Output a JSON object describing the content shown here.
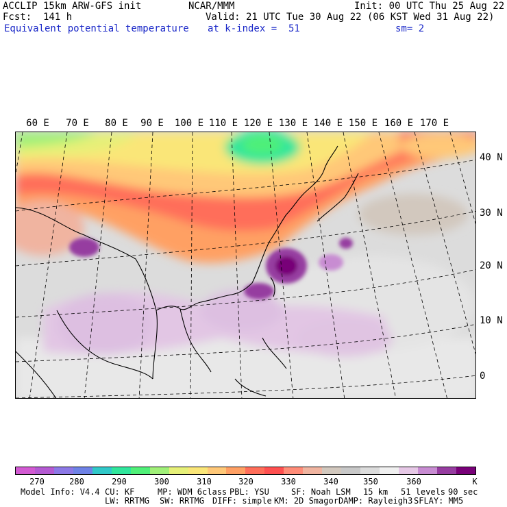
{
  "header": {
    "line1_left": "ACCLIP 15km ARW-GFS init",
    "line1_mid": "NCAR/MMM",
    "line1_right": "Init: 00 UTC Thu 25 Aug 22",
    "line2_left": "Fcst:  141 h",
    "line2_right": "Valid: 21 UTC Tue 30 Aug 22 (06 KST Wed 31 Aug 22)",
    "line3_left": "Equivalent potential temperature",
    "line3_mid": "at k-index =  51",
    "line3_right": "sm= 2"
  },
  "map": {
    "lon_labels": [
      "60 E",
      "70 E",
      "80 E",
      "90 E",
      "100 E",
      "110 E",
      "120 E",
      "130 E",
      "140 E",
      "150 E",
      "160 E",
      "170 E"
    ],
    "lat_labels": [
      "40 N",
      "30 N",
      "20 N",
      "10 N",
      "0"
    ]
  },
  "colorbar": {
    "colors": [
      "#d25ad2",
      "#b45ad2",
      "#8c78e6",
      "#6e82e6",
      "#30c8c8",
      "#30e69c",
      "#50f078",
      "#a0f078",
      "#e6f078",
      "#fae678",
      "#ffc878",
      "#ffa064",
      "#ff6e5a",
      "#ff5050",
      "#ff8c78",
      "#f0b4a0",
      "#d2c8be",
      "#c8c8c8",
      "#dcdcdc",
      "#f0f0f0",
      "#e6c8e6",
      "#c88cd2",
      "#963ca0",
      "#780078"
    ],
    "labels": [
      "270",
      "280",
      "290",
      "300",
      "310",
      "320",
      "330",
      "340",
      "350",
      "360"
    ],
    "unit": "K"
  },
  "footer": {
    "line1": [
      "Model Info: V4.4",
      "CU: KF",
      "MP: WDM 6class",
      "PBL: YSU",
      "SF: Noah LSM",
      "15 km",
      "51 levels",
      "90 sec"
    ],
    "line2": [
      "LW: RRTMG",
      "SW: RRTMG",
      "DIFF: simple",
      "KM: 2D Smagor",
      "DAMP: Rayleigh3",
      "SFLAY: MM5"
    ]
  }
}
